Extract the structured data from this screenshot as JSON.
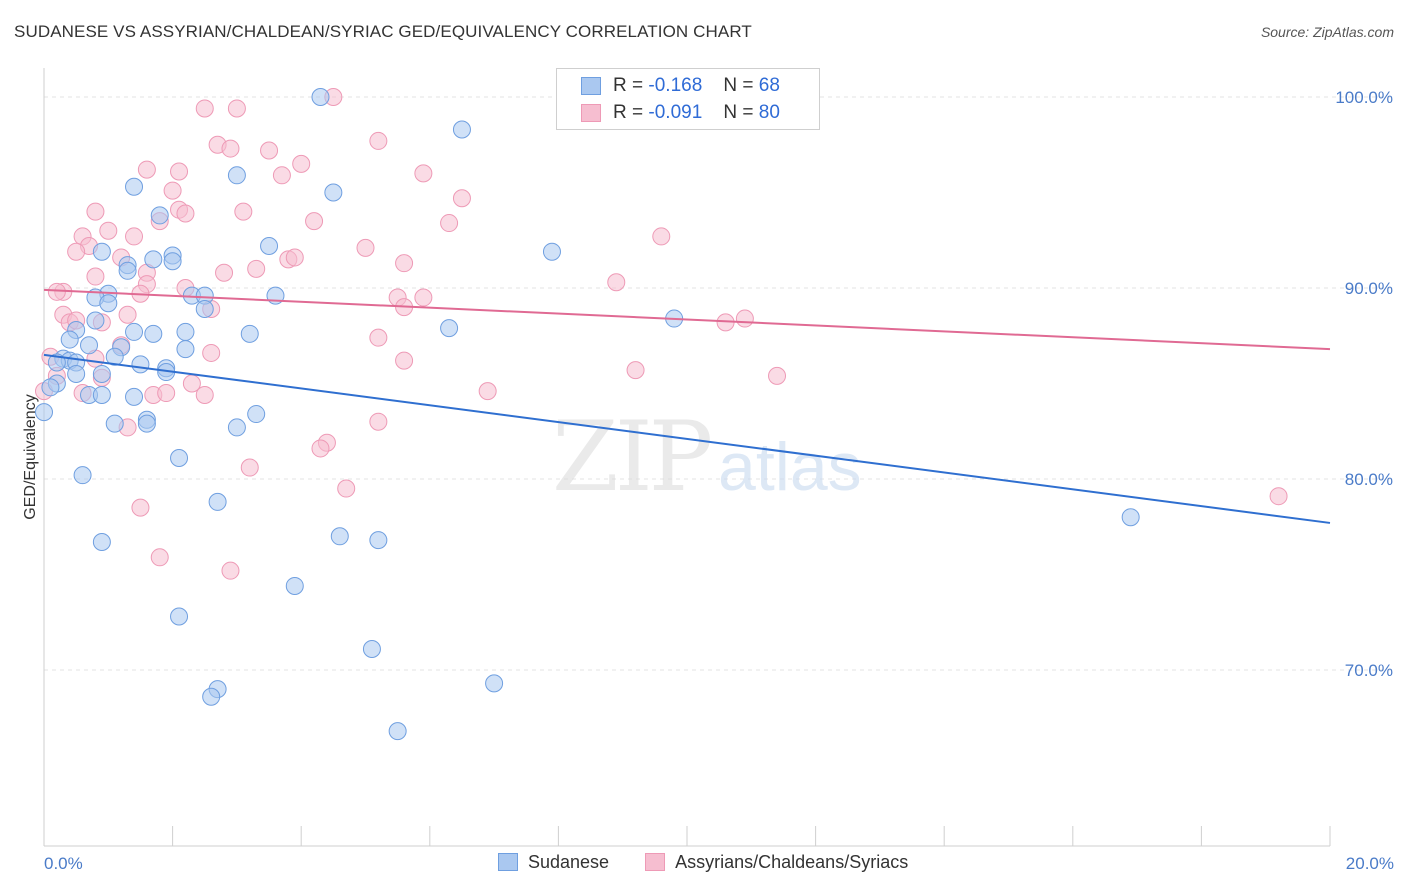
{
  "title": "SUDANESE VS ASSYRIAN/CHALDEAN/SYRIAC GED/EQUIVALENCY CORRELATION CHART",
  "source": "Source: ZipAtlas.com",
  "watermark": {
    "zip": "ZIP",
    "atlas": "atlas"
  },
  "legend": {
    "r_label": "R =",
    "n_label": "N =",
    "series": [
      {
        "r": "-0.168",
        "n": "68"
      },
      {
        "r": "-0.091",
        "n": "80"
      }
    ]
  },
  "chart_data": {
    "type": "scatter",
    "title": "SUDANESE VS ASSYRIAN/CHALDEAN/SYRIAC GED/EQUIVALENCY CORRELATION CHART",
    "xlabel": "",
    "ylabel": "GED/Equivalency",
    "xlim": [
      0,
      20
    ],
    "ylim": [
      60,
      101.5
    ],
    "x_tick_labels": {
      "left": "0.0%",
      "right": "20.0%"
    },
    "y_ticks": [
      {
        "value": 100,
        "label": "100.0%"
      },
      {
        "value": 90,
        "label": "90.0%"
      },
      {
        "value": 80,
        "label": "80.0%"
      },
      {
        "value": 70,
        "label": "70.0%"
      }
    ],
    "colors": {
      "sudanese_fill": "#aac8f0",
      "sudanese_edge": "#6f9fe0",
      "sudanese_line": "#2f6fd0",
      "assyrian_fill": "#f6bed0",
      "assyrian_edge": "#ee9ab6",
      "assyrian_line": "#e06a93",
      "grid": "#e3e3e3",
      "tick_text": "#4a7bc8"
    },
    "series": [
      {
        "name": "Sudanese",
        "trend": {
          "x0": 0,
          "y0": 86.5,
          "x1": 20,
          "y1": 77.7
        },
        "points": [
          [
            4.3,
            100
          ],
          [
            6.5,
            98.3
          ],
          [
            1.4,
            95.3
          ],
          [
            3.0,
            95.9
          ],
          [
            4.5,
            95.0
          ],
          [
            1.8,
            93.8
          ],
          [
            3.5,
            92.2
          ],
          [
            7.9,
            91.9
          ],
          [
            0.9,
            91.9
          ],
          [
            1.3,
            91.2
          ],
          [
            1.7,
            91.5
          ],
          [
            2.0,
            91.7
          ],
          [
            1.3,
            90.9
          ],
          [
            2.0,
            91.4
          ],
          [
            1.0,
            89.7
          ],
          [
            0.8,
            89.5
          ],
          [
            1.0,
            89.2
          ],
          [
            2.3,
            89.6
          ],
          [
            2.5,
            89.6
          ],
          [
            3.6,
            89.6
          ],
          [
            2.5,
            88.9
          ],
          [
            0.8,
            88.3
          ],
          [
            9.8,
            88.4
          ],
          [
            6.3,
            87.9
          ],
          [
            0.5,
            87.8
          ],
          [
            1.4,
            87.7
          ],
          [
            1.7,
            87.6
          ],
          [
            2.2,
            87.7
          ],
          [
            3.2,
            87.6
          ],
          [
            0.4,
            87.3
          ],
          [
            0.7,
            87.0
          ],
          [
            1.2,
            86.9
          ],
          [
            2.2,
            86.8
          ],
          [
            1.1,
            86.4
          ],
          [
            0.3,
            86.3
          ],
          [
            0.4,
            86.2
          ],
          [
            0.2,
            86.1
          ],
          [
            0.5,
            86.1
          ],
          [
            1.5,
            86.0
          ],
          [
            1.9,
            85.8
          ],
          [
            1.9,
            85.6
          ],
          [
            0.5,
            85.5
          ],
          [
            0.9,
            85.5
          ],
          [
            0.2,
            85.0
          ],
          [
            0.1,
            84.8
          ],
          [
            0.7,
            84.4
          ],
          [
            0.9,
            84.4
          ],
          [
            1.4,
            84.3
          ],
          [
            0.0,
            83.5
          ],
          [
            3.3,
            83.4
          ],
          [
            1.6,
            83.1
          ],
          [
            1.6,
            82.9
          ],
          [
            1.1,
            82.9
          ],
          [
            3.0,
            82.7
          ],
          [
            2.1,
            81.1
          ],
          [
            0.6,
            80.2
          ],
          [
            2.7,
            78.8
          ],
          [
            16.9,
            78.0
          ],
          [
            4.6,
            77.0
          ],
          [
            5.2,
            76.8
          ],
          [
            0.9,
            76.7
          ],
          [
            3.9,
            74.4
          ],
          [
            2.1,
            72.8
          ],
          [
            5.1,
            71.1
          ],
          [
            7.0,
            69.3
          ],
          [
            2.7,
            69.0
          ],
          [
            2.6,
            68.6
          ],
          [
            5.5,
            66.8
          ]
        ]
      },
      {
        "name": "Assyrians/Chaldeans/Syriacs",
        "trend": {
          "x0": 0,
          "y0": 89.9,
          "x1": 20,
          "y1": 86.8
        },
        "points": [
          [
            4.5,
            100
          ],
          [
            2.5,
            99.4
          ],
          [
            3.0,
            99.4
          ],
          [
            5.2,
            97.7
          ],
          [
            2.7,
            97.5
          ],
          [
            2.9,
            97.3
          ],
          [
            3.5,
            97.2
          ],
          [
            4.0,
            96.5
          ],
          [
            1.6,
            96.2
          ],
          [
            2.1,
            96.1
          ],
          [
            3.7,
            95.9
          ],
          [
            5.9,
            96.0
          ],
          [
            2.0,
            95.1
          ],
          [
            6.5,
            94.7
          ],
          [
            0.8,
            94.0
          ],
          [
            2.1,
            94.1
          ],
          [
            3.1,
            94.0
          ],
          [
            2.2,
            93.9
          ],
          [
            1.8,
            93.5
          ],
          [
            4.2,
            93.5
          ],
          [
            6.3,
            93.4
          ],
          [
            1.0,
            93.0
          ],
          [
            0.6,
            92.7
          ],
          [
            1.4,
            92.7
          ],
          [
            9.6,
            92.7
          ],
          [
            0.7,
            92.2
          ],
          [
            5.0,
            92.1
          ],
          [
            0.5,
            91.9
          ],
          [
            1.2,
            91.6
          ],
          [
            3.8,
            91.5
          ],
          [
            3.9,
            91.6
          ],
          [
            5.6,
            91.3
          ],
          [
            3.3,
            91.0
          ],
          [
            1.6,
            90.8
          ],
          [
            0.8,
            90.6
          ],
          [
            2.8,
            90.8
          ],
          [
            1.6,
            90.2
          ],
          [
            8.9,
            90.3
          ],
          [
            2.2,
            90.0
          ],
          [
            0.3,
            89.8
          ],
          [
            0.2,
            89.8
          ],
          [
            1.5,
            89.7
          ],
          [
            5.5,
            89.5
          ],
          [
            5.9,
            89.5
          ],
          [
            5.6,
            89.0
          ],
          [
            2.6,
            88.9
          ],
          [
            0.3,
            88.6
          ],
          [
            1.3,
            88.6
          ],
          [
            10.9,
            88.4
          ],
          [
            10.6,
            88.2
          ],
          [
            0.4,
            88.2
          ],
          [
            0.5,
            88.3
          ],
          [
            0.9,
            88.2
          ],
          [
            5.2,
            87.4
          ],
          [
            1.2,
            87.0
          ],
          [
            2.6,
            86.6
          ],
          [
            0.1,
            86.4
          ],
          [
            0.8,
            86.3
          ],
          [
            5.6,
            86.2
          ],
          [
            9.2,
            85.7
          ],
          [
            11.4,
            85.4
          ],
          [
            0.2,
            85.4
          ],
          [
            0.9,
            85.3
          ],
          [
            2.3,
            85.0
          ],
          [
            0.0,
            84.6
          ],
          [
            0.6,
            84.5
          ],
          [
            6.9,
            84.6
          ],
          [
            1.7,
            84.4
          ],
          [
            1.9,
            84.5
          ],
          [
            2.5,
            84.4
          ],
          [
            5.2,
            83.0
          ],
          [
            1.3,
            82.7
          ],
          [
            4.4,
            81.9
          ],
          [
            4.3,
            81.6
          ],
          [
            3.2,
            80.6
          ],
          [
            4.7,
            79.5
          ],
          [
            19.2,
            79.1
          ],
          [
            1.5,
            78.5
          ],
          [
            1.8,
            75.9
          ],
          [
            2.9,
            75.2
          ]
        ]
      }
    ]
  }
}
